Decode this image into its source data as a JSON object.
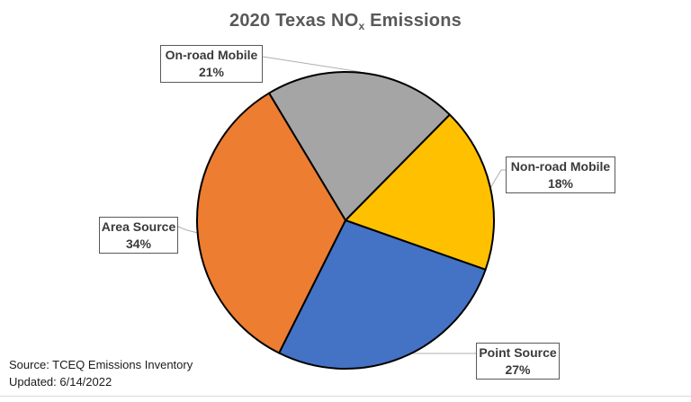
{
  "title": {
    "prefix": "2020 Texas NO",
    "subscript": "x",
    "suffix": " Emissions"
  },
  "chart_data": {
    "type": "pie",
    "title": "2020 Texas NOx Emissions",
    "start_angle_deg": -31,
    "direction": "clockwise",
    "labels_style": "callout boxes with category name and percent, leader lines",
    "slices": [
      {
        "id": "onroad-mobile",
        "label": "On-road Mobile",
        "value_pct": 21,
        "pct_label": "21%",
        "color": "#A5A5A5"
      },
      {
        "id": "nonroad-mobile",
        "label": "Non-road Mobile",
        "value_pct": 18,
        "pct_label": "18%",
        "color": "#FFC000"
      },
      {
        "id": "point-source",
        "label": "Point Source",
        "value_pct": 27,
        "pct_label": "27%",
        "color": "#4472C4"
      },
      {
        "id": "area-source",
        "label": "Area Source",
        "value_pct": 34,
        "pct_label": "34%",
        "color": "#ED7D31"
      }
    ]
  },
  "footer": {
    "source": "Source: TCEQ Emissions Inventory",
    "updated": "Updated: 6/14/2022"
  },
  "colors": {
    "title_text": "#595959",
    "callout_border": "#595959",
    "callout_text": "#3A3A3A",
    "leader_line": "#AFAFAF",
    "pie_outline": "#000000",
    "background": "#FFFFFF"
  }
}
